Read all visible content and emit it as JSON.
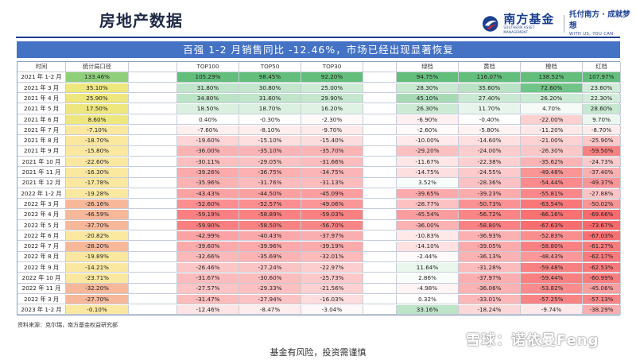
{
  "header": {
    "title": "房地产数据",
    "logo_name": "南方基金",
    "logo_sub": "SOUTHERN ASSET MANAGEMENT",
    "slogan": "托付南方 · 成就梦想",
    "slogan_en": "WITH US, YOU CAN"
  },
  "banner": "百强 1-2 月销售同比 -12.46%，市场已经出现显著恢复",
  "table": {
    "columns": [
      "时间",
      "统计局口径",
      "",
      "TOP100",
      "TOP50",
      "TOP30",
      "",
      "绿档",
      "黄档",
      "橙档",
      "红档"
    ],
    "rows": [
      [
        "2021 年 1-2 月",
        "133.46%",
        "",
        "105.29%",
        "98.45%",
        "92.20%",
        "",
        "94.75%",
        "116.07%",
        "138.52%",
        "107.97%"
      ],
      [
        "2021 年 3 月",
        "35.10%",
        "",
        "31.80%",
        "30.80%",
        "25.00%",
        "",
        "28.30%",
        "35.60%",
        "72.60%",
        "23.60%"
      ],
      [
        "2021 年 4 月",
        "25.90%",
        "",
        "34.80%",
        "31.60%",
        "29.90%",
        "",
        "45.10%",
        "27.40%",
        "26.20%",
        "22.30%"
      ],
      [
        "2021 年 5 月",
        "17.50%",
        "",
        "18.50%",
        "18.70%",
        "16.20%",
        "",
        "26.30%",
        "11.70%",
        "4.70%",
        "28.60%"
      ],
      [
        "2021 年 6 月",
        "8.60%",
        "",
        "0.40%",
        "-0.30%",
        "-2.30%",
        "",
        "-6.90%",
        "-0.40%",
        "-22.00%",
        "9.70%"
      ],
      [
        "2021 年 7 月",
        "-7.10%",
        "",
        "-7.60%",
        "-8.10%",
        "-9.70%",
        "",
        "-2.60%",
        "-5.80%",
        "-11.20%",
        "-8.70%"
      ],
      [
        "2021 年 8 月",
        "-18.70%",
        "",
        "-19.60%",
        "-15.10%",
        "-15.40%",
        "",
        "-10.00%",
        "-14.60%",
        "-21.00%",
        "-25.90%"
      ],
      [
        "2021 年 9 月",
        "-15.80%",
        "",
        "-36.00%",
        "-35.10%",
        "-35.70%",
        "",
        "-29.20%",
        "-24.00%",
        "-26.30%",
        "-59.50%"
      ],
      [
        "2021 年 10 月",
        "-22.60%",
        "",
        "-30.11%",
        "-29.05%",
        "-31.66%",
        "",
        "-11.67%",
        "-22.38%",
        "-35.62%",
        "-24.73%"
      ],
      [
        "2021 年 11 月",
        "-16.30%",
        "",
        "-39.26%",
        "-36.75%",
        "-34.75%",
        "",
        "-14.75%",
        "-24.55%",
        "-49.48%",
        "-37.40%"
      ],
      [
        "2021 年 12 月",
        "-17.78%",
        "",
        "-35.96%",
        "-31.76%",
        "-31.13%",
        "",
        "3.52%",
        "-28.36%",
        "-54.44%",
        "-49.37%"
      ],
      [
        "2022 年 1-2 月",
        "-19.28%",
        "",
        "-43.43%",
        "-44.50%",
        "-45.09%",
        "",
        "-39.65%",
        "-39.23%",
        "-55.81%",
        "-27.88%"
      ],
      [
        "2022 年 3 月",
        "-26.16%",
        "",
        "-52.60%",
        "-52.57%",
        "-49.06%",
        "",
        "-28.77%",
        "-50.73%",
        "-63.54%",
        "-50.02%"
      ],
      [
        "2022 年 4 月",
        "-46.59%",
        "",
        "-59.19%",
        "-58.89%",
        "-59.03%",
        "",
        "-45.54%",
        "-56.72%",
        "-66.16%",
        "-69.66%"
      ],
      [
        "2022 年 5 月",
        "-37.70%",
        "",
        "-59.90%",
        "-58.50%",
        "-56.70%",
        "",
        "-36.00%",
        "-58.80%",
        "-67.63%",
        "-73.67%"
      ],
      [
        "2022 年 6 月",
        "-20.82%",
        "",
        "-42.99%",
        "-40.43%",
        "-37.97%",
        "",
        "-10.83%",
        "-36.93%",
        "-52.83%",
        "-67.03%"
      ],
      [
        "2022 年 7 月",
        "-28.20%",
        "",
        "-39.60%",
        "-39.96%",
        "-39.19%",
        "",
        "-14.10%",
        "-39.05%",
        "-58.80%",
        "-61.27%"
      ],
      [
        "2022 年 8 月",
        "-19.89%",
        "",
        "-32.66%",
        "-35.69%",
        "-32.01%",
        "",
        "-2.44%",
        "-36.13%",
        "-48.43%",
        "-62.17%"
      ],
      [
        "2022 年 9 月",
        "-14.21%",
        "",
        "-26.46%",
        "-27.24%",
        "-22.97%",
        "",
        "11.64%",
        "-31.28%",
        "-59.48%",
        "-62.53%"
      ],
      [
        "2022 年 10 月",
        "-23.71%",
        "",
        "-31.67%",
        "-30.60%",
        "-25.73%",
        "",
        "2.86%",
        "-37.97%",
        "-59.44%",
        "-60.99%"
      ],
      [
        "2022 年 11 月",
        "-32.20%",
        "",
        "-27.57%",
        "-29.33%",
        "-21.56%",
        "",
        "-4.98%",
        "-36.06%",
        "-53.82%",
        "-45.06%"
      ],
      [
        "2022 年 3 月",
        "-27.70%",
        "",
        "-31.47%",
        "-27.94%",
        "-16.03%",
        "",
        "0.32%",
        "-33.01%",
        "-57.25%",
        "-57.13%"
      ],
      [
        "2023 年 1-2 月",
        "-0.10%",
        "",
        "-12.46%",
        "-8.47%",
        "-3.04%",
        "",
        "33.16%",
        "-18.24%",
        "-9.74%",
        "-38.29%"
      ]
    ]
  },
  "source": "资料来源：克尔瑞，南方基金权益研究部",
  "footer": "基金有风险，投资需谨慎",
  "watermark": "雪球：诺依曼Feng"
}
